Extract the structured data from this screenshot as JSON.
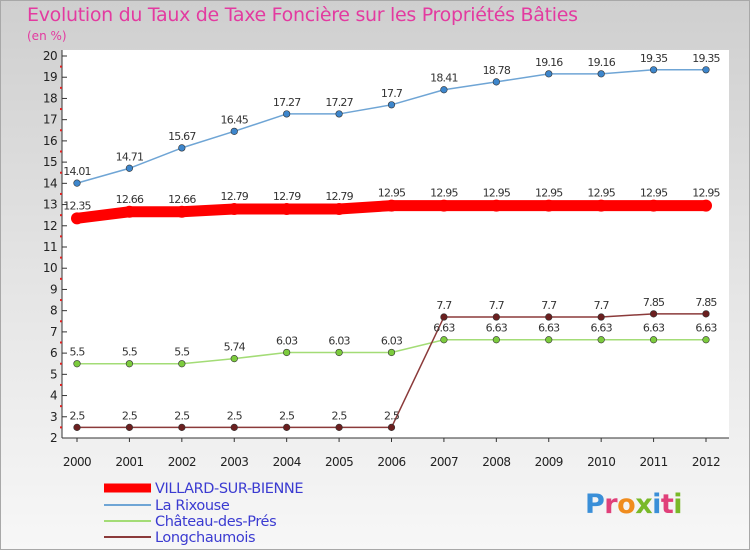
{
  "title": "Evolution du Taux de Taxe Foncière sur les Propriétés Bâties",
  "unit": "(en %)",
  "logo": {
    "text": "Proxiti",
    "letter_colors": [
      "#3a8fd8",
      "#e0407a",
      "#f08c1e",
      "#79b928",
      "#3a8fd8",
      "#e0407a",
      "#79b928"
    ]
  },
  "chart_data": {
    "type": "line",
    "title": "Evolution du Taux de Taxe Foncière sur les Propriétés Bâties",
    "ylabel": "(en %)",
    "xlabel": "",
    "ylim": [
      2,
      20
    ],
    "y_ticks": [
      2,
      3,
      4,
      5,
      6,
      7,
      8,
      9,
      10,
      11,
      12,
      13,
      14,
      15,
      16,
      17,
      18,
      19,
      20
    ],
    "x": [
      "2000",
      "2001",
      "2002",
      "2003",
      "2004",
      "2005",
      "2006",
      "2007",
      "2008",
      "2009",
      "2010",
      "2011",
      "2012"
    ],
    "series": [
      {
        "name": "VILLARD-SUR-BIENNE",
        "color": "#ff0000",
        "thick": true,
        "values": [
          12.35,
          12.66,
          12.66,
          12.79,
          12.79,
          12.79,
          12.95,
          12.95,
          12.95,
          12.95,
          12.95,
          12.95,
          12.95
        ],
        "labels": [
          "12.35",
          "12.66",
          "12.66",
          "12.79",
          "12.79",
          "12.79",
          "12.95",
          "12.95",
          "12.95",
          "12.95",
          "12.95",
          "12.95",
          "12.95"
        ]
      },
      {
        "name": "La Rixouse",
        "color": "#6fa5d5",
        "marker": "#3d86cc",
        "values": [
          14.01,
          14.71,
          15.67,
          16.45,
          17.27,
          17.27,
          17.7,
          18.41,
          18.78,
          19.16,
          19.16,
          19.35,
          19.35
        ],
        "labels": [
          "14.01",
          "14.71",
          "15.67",
          "16.45",
          "17.27",
          "17.27",
          "17.7",
          "18.41",
          "18.78",
          "19.16",
          "19.16",
          "19.35",
          "19.35"
        ]
      },
      {
        "name": "Château-des-Prés",
        "color": "#a3dc76",
        "marker": "#7ccb3d",
        "values": [
          5.5,
          5.5,
          5.5,
          5.74,
          6.03,
          6.03,
          6.03,
          6.63,
          6.63,
          6.63,
          6.63,
          6.63,
          6.63
        ],
        "labels": [
          "5.5",
          "5.5",
          "5.5",
          "5.74",
          "6.03",
          "6.03",
          "6.03",
          "6.63",
          "6.63",
          "6.63",
          "6.63",
          "6.63",
          "6.63"
        ]
      },
      {
        "name": "Longchaumois",
        "color": "#8b3a3a",
        "marker": "#6b1f1f",
        "values": [
          2.5,
          2.5,
          2.5,
          2.5,
          2.5,
          2.5,
          2.5,
          7.7,
          7.7,
          7.7,
          7.7,
          7.85,
          7.85
        ],
        "labels": [
          "2.5",
          "2.5",
          "2.5",
          "2.5",
          "2.5",
          "2.5",
          "2.5",
          "7.7",
          "7.7",
          "7.7",
          "7.7",
          "7.85",
          "7.85"
        ]
      }
    ],
    "grid": false,
    "legend_position": "bottom-left"
  }
}
